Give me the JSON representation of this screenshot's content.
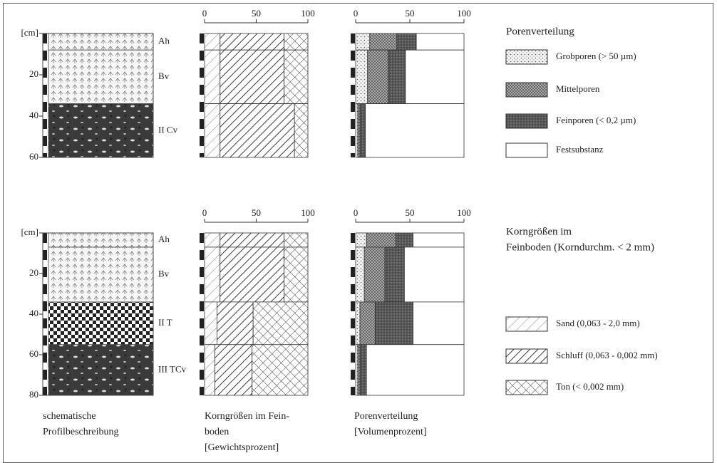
{
  "percent_lim": [
    0,
    100
  ],
  "percent_ticks": [
    0,
    50,
    100
  ],
  "profiles": [
    {
      "depth_lim": [
        0,
        60
      ],
      "depth_ticks": [
        {
          "value": 0,
          "label": "[cm]"
        },
        20,
        40,
        60
      ],
      "horizons": [
        {
          "label": "Ah",
          "from": 0,
          "to": 8,
          "texture": "light",
          "grain": [
            15,
            62,
            23
          ],
          "pores": [
            13,
            25,
            18,
            44
          ]
        },
        {
          "label": "Bv",
          "from": 8,
          "to": 34,
          "texture": "light",
          "grain": [
            15,
            62,
            23
          ],
          "pores": [
            11,
            19,
            16,
            54
          ]
        },
        {
          "label": "II Cv",
          "from": 34,
          "to": 60,
          "texture": "stony",
          "grain": [
            15,
            72,
            13
          ],
          "pores": [
            2,
            2,
            5,
            91
          ]
        }
      ]
    },
    {
      "depth_lim": [
        0,
        80
      ],
      "depth_ticks": [
        {
          "value": 0,
          "label": "[cm]"
        },
        20,
        40,
        60,
        80
      ],
      "horizons": [
        {
          "label": "Ah",
          "from": 0,
          "to": 7,
          "texture": "light",
          "grain": [
            15,
            62,
            23
          ],
          "pores": [
            10,
            27,
            16,
            47
          ]
        },
        {
          "label": "Bv",
          "from": 7,
          "to": 34,
          "texture": "light",
          "grain": [
            15,
            62,
            23
          ],
          "pores": [
            8,
            19,
            18,
            55
          ]
        },
        {
          "label": "II T",
          "from": 34,
          "to": 55,
          "texture": "checkered",
          "grain": [
            12,
            35,
            53
          ],
          "pores": [
            4,
            14,
            35,
            47
          ]
        },
        {
          "label": "III TCv",
          "from": 55,
          "to": 80,
          "texture": "stony",
          "grain": [
            10,
            36,
            54
          ],
          "pores": [
            2,
            2,
            6,
            90
          ]
        }
      ]
    }
  ],
  "pore_legend": {
    "title": "Porenverteilung",
    "items": [
      "Grobporen (> 50 µm)",
      "Mittelporen",
      "Feinporen (< 0,2 µm)",
      "Festsubstanz"
    ]
  },
  "grain_legend": {
    "title_lines": [
      "Korngrößen im",
      "Feinboden (Korndurchm. < 2 mm)"
    ],
    "items": [
      "Sand (0,063 - 2,0 mm)",
      "Schluff (0,063 - 0,002 mm)",
      "Ton (< 0,002 mm)"
    ]
  },
  "captions": [
    [
      "schematische",
      "Profilbeschreibung"
    ],
    [
      "Korngrößen im Fein-",
      "boden",
      "[Gewichtsprozent]"
    ],
    [
      "Porenverteilung",
      "[Volumenprozent]"
    ]
  ]
}
